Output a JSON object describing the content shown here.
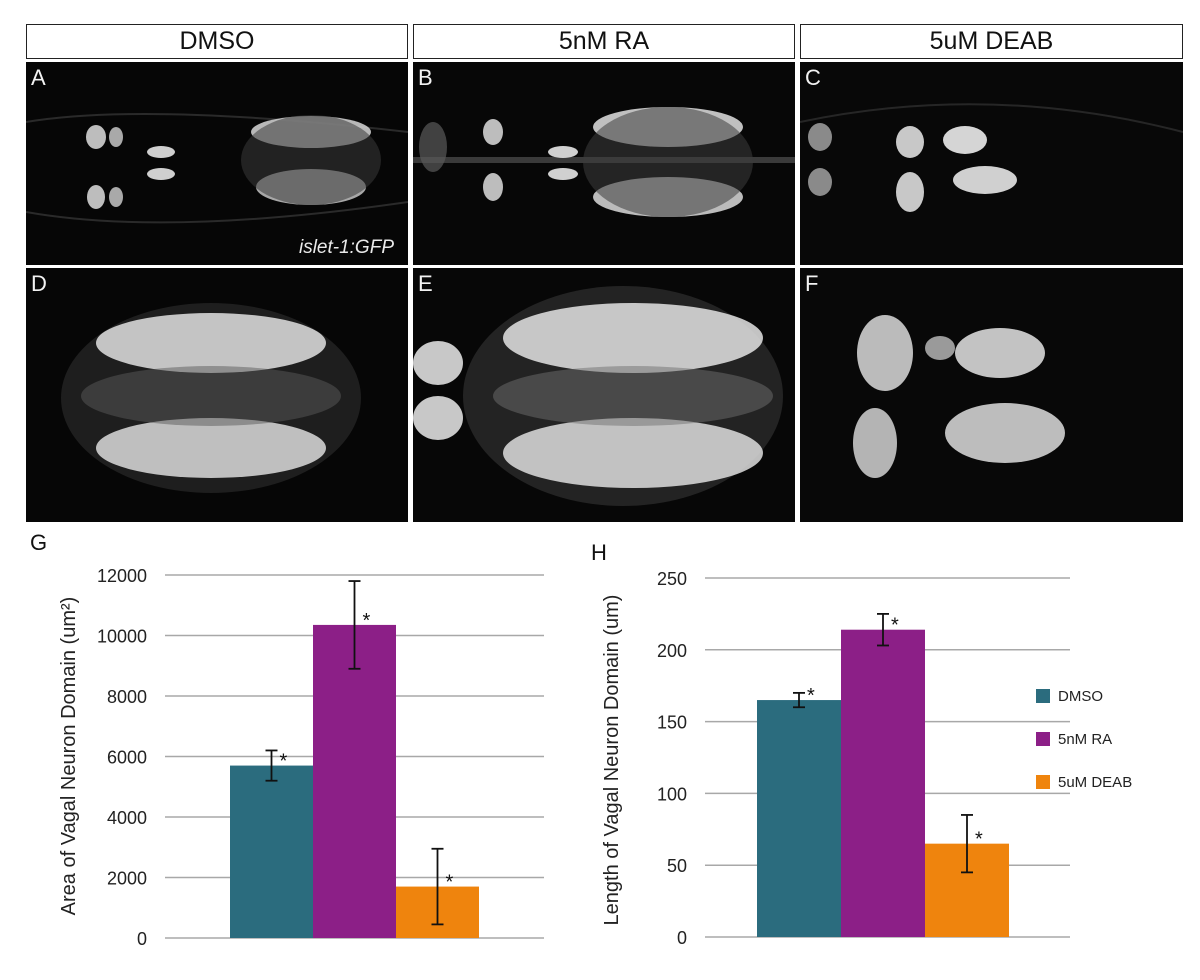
{
  "conditions": [
    "DMSO",
    "5nM RA",
    "5uM DEAB"
  ],
  "panels": [
    "A",
    "B",
    "C",
    "D",
    "E",
    "F"
  ],
  "marker_label": "islet-1:GFP",
  "chart_data": [
    {
      "panel": "G",
      "type": "bar",
      "categories": [
        "DMSO",
        "5nM RA",
        "5uM DEAB"
      ],
      "values": [
        5700,
        10350,
        1700
      ],
      "errors": [
        500,
        1450,
        1250
      ],
      "annotations": [
        "*",
        "*",
        "*"
      ],
      "ylabel": "Area of Vagal Neuron Domain (um²)",
      "ylim": [
        0,
        12000
      ],
      "yticks": [
        0,
        2000,
        4000,
        6000,
        8000,
        10000,
        12000
      ],
      "colors": [
        "#2b6c7e",
        "#8c1f87",
        "#ef840d"
      ],
      "grid": true
    },
    {
      "panel": "H",
      "type": "bar",
      "categories": [
        "DMSO",
        "5nM RA",
        "5uM DEAB"
      ],
      "values": [
        165,
        214,
        65
      ],
      "errors": [
        5,
        11,
        20
      ],
      "annotations": [
        "*",
        "*",
        "*"
      ],
      "ylabel": "Length of Vagal Neuron Domain (um)",
      "ylim": [
        0,
        250
      ],
      "yticks": [
        0,
        50,
        100,
        150,
        200,
        250
      ],
      "colors": [
        "#2b6c7e",
        "#8c1f87",
        "#ef840d"
      ],
      "grid": true,
      "legend": {
        "position": "right",
        "entries": [
          "DMSO",
          "5nM RA",
          "5uM DEAB"
        ]
      }
    }
  ]
}
